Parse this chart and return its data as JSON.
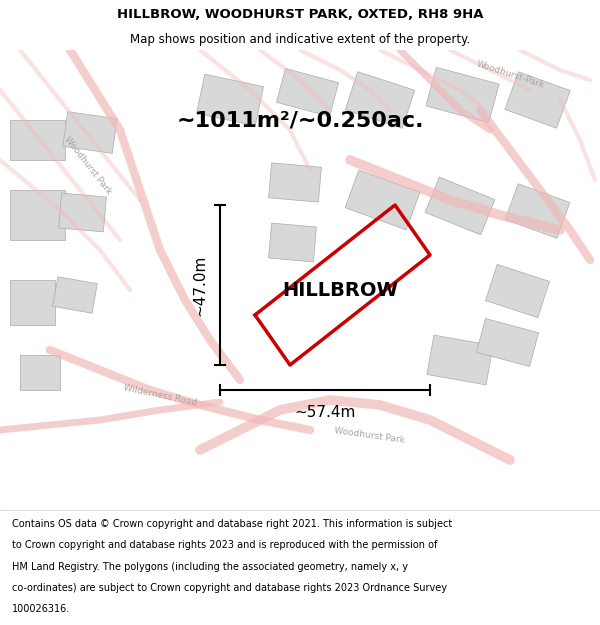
{
  "title": "HILLBROW, WOODHURST PARK, OXTED, RH8 9HA",
  "subtitle": "Map shows position and indicative extent of the property.",
  "footer_lines": [
    "Contains OS data © Crown copyright and database right 2021. This information is subject",
    "to Crown copyright and database rights 2023 and is reproduced with the permission of",
    "HM Land Registry. The polygons (including the associated geometry, namely x, y",
    "co-ordinates) are subject to Crown copyright and database rights 2023 Ordnance Survey",
    "100026316."
  ],
  "area_label": "~1011m²/~0.250ac.",
  "property_name": "HILLBROW",
  "width_label": "~57.4m",
  "height_label": "~47.0m",
  "map_bg": "#ffffff",
  "road_color": "#f0b8b8",
  "building_color": "#d8d8d8",
  "plot_color": "#cc0000",
  "title_fontsize": 9.5,
  "subtitle_fontsize": 8.5,
  "footer_fontsize": 7.0,
  "figsize": [
    6.0,
    6.25
  ],
  "dpi": 100
}
